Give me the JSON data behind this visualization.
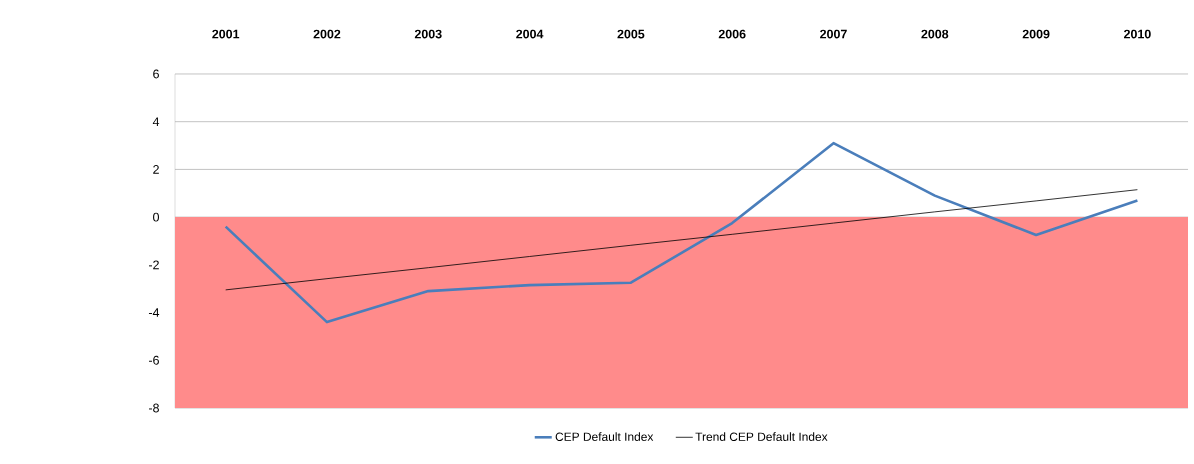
{
  "chart_data": {
    "type": "line",
    "categories": [
      "2001",
      "2002",
      "2003",
      "2004",
      "2005",
      "2006",
      "2007",
      "2008",
      "2009",
      "2010"
    ],
    "series": [
      {
        "name": "CEP Default Index",
        "color": "#4a7ebb",
        "values": [
          -0.4,
          -4.4,
          -3.1,
          -2.85,
          -2.75,
          -0.25,
          3.1,
          0.9,
          -0.75,
          0.7
        ]
      },
      {
        "name": "Trend CEP Default Index",
        "color": "#000000",
        "values": [
          -3.05,
          -2.58,
          -2.12,
          -1.65,
          -1.18,
          -0.72,
          -0.25,
          0.22,
          0.68,
          1.15
        ]
      }
    ],
    "ylim": [
      -8,
      6
    ],
    "yticks": [
      -8,
      -6,
      -4,
      -2,
      0,
      2,
      4,
      6
    ],
    "grid": "y",
    "legend": "bottom",
    "line_style": "solid",
    "marker": "none",
    "bands": [
      {
        "axis": "y",
        "from": -8,
        "to": 0,
        "color": "#ff8b8b"
      }
    ]
  }
}
